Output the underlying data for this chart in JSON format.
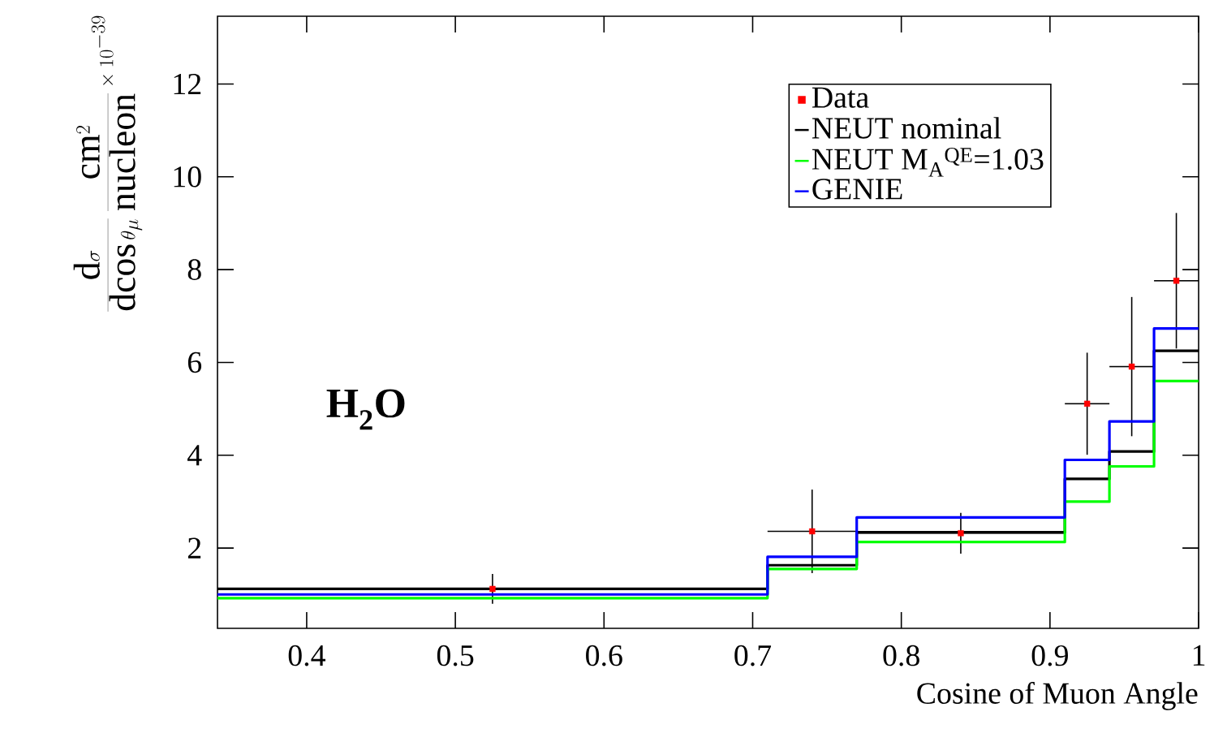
{
  "chart_data": {
    "type": "histogram",
    "xlabel": "Cosine of Muon Angle",
    "ylabel": "\\frac{\\mathrm{d}\\sigma}{\\mathrm{d}\\!\\cos\\theta_{\\mu}}\\;\\frac{\\mathrm{cm}^{2}}{\\mathrm{nucleon}}\\times 10^{-39}",
    "bins": [
      0.34,
      0.71,
      0.77,
      0.91,
      0.94,
      0.97,
      1.0
    ],
    "series": [
      {
        "name": "Data",
        "type": "scatter",
        "marker": "square",
        "color": "#ff0000",
        "x": [
          0.525,
          0.74,
          0.84,
          0.925,
          0.955,
          0.985
        ],
        "values": [
          1.12,
          2.36,
          2.32,
          5.11,
          5.91,
          7.76
        ],
        "errors": [
          0.32,
          0.9,
          0.44,
          1.1,
          1.5,
          1.46
        ],
        "xerrors": [
          0.185,
          0.03,
          0.07,
          0.015,
          0.015,
          0.015
        ]
      },
      {
        "name": "NEUT nominal",
        "color": "#000000",
        "values": [
          1.12,
          1.63,
          2.34,
          3.49,
          4.08,
          6.25
        ]
      },
      {
        "name": "NEUT M$_{A}$$^{QE}$=1.03",
        "color": "#00ff00",
        "values": [
          0.92,
          1.55,
          2.13,
          3.0,
          3.76,
          5.6
        ]
      },
      {
        "name": "GENIE",
        "color": "#0000ff",
        "values": [
          1.0,
          1.81,
          2.66,
          3.9,
          4.73,
          6.73
        ]
      }
    ],
    "annotations": [
      "H$_{2}$O"
    ],
    "xlim": [
      0.34,
      1.0
    ],
    "ylim": [
      0.27,
      13.46
    ],
    "xticks": [
      0.4,
      0.5,
      0.6,
      0.7,
      0.8,
      0.9,
      1
    ],
    "yticks": [
      2,
      4,
      6,
      8,
      10,
      12
    ],
    "legend": "top right",
    "grid": false
  }
}
